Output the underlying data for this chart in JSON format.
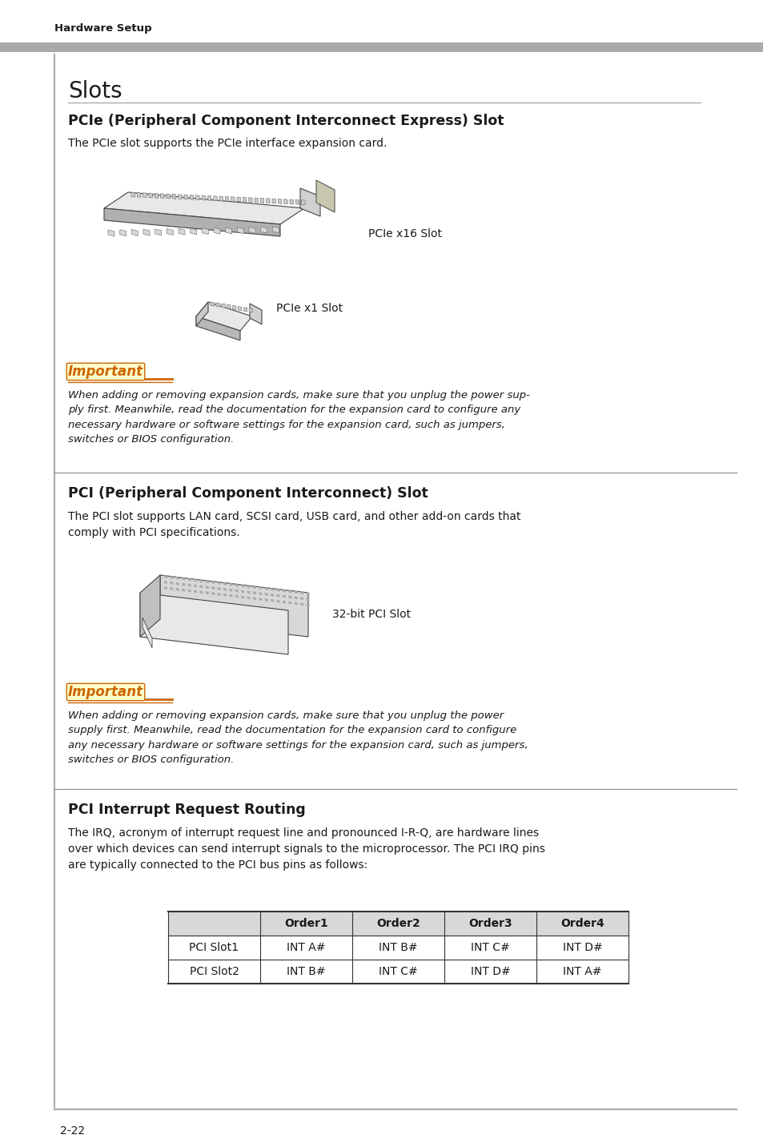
{
  "page_bg": "#ffffff",
  "header_bar_color": "#aaaaaa",
  "header_text": "Hardware Setup",
  "header_text_color": "#1a1a1a",
  "footer_text": "2-22",
  "title_slots": "Slots",
  "section1_title": "PCIe (Peripheral Component Interconnect Express) Slot",
  "section1_body": "The PCIe slot supports the PCIe interface expansion card.",
  "pcie_x16_label": "PCIe x16 Slot",
  "pcie_x1_label": "PCIe x1 Slot",
  "important_label": "Important",
  "important_text1": "When adding or removing expansion cards, make sure that you unplug the power sup-\nply first. Meanwhile, read the documentation for the expansion card to configure any\nnecessary hardware or software settings for the expansion card, such as jumpers,\nswitches or BIOS configuration.",
  "section2_title": "PCI (Peripheral Component Interconnect) Slot",
  "section2_body": "The PCI slot supports LAN card, SCSI card, USB card, and other add-on cards that\ncomply with PCI specifications.",
  "pci_32bit_label": "32-bit PCI Slot",
  "important_text2": "When adding or removing expansion cards, make sure that you unplug the power\nsupply first. Meanwhile, read the documentation for the expansion card to configure\nany necessary hardware or software settings for the expansion card, such as jumpers,\nswitches or BIOS configuration.",
  "section3_title": "PCI Interrupt Request Routing",
  "section3_body": "The IRQ, acronym of interrupt request line and pronounced I-R-Q, are hardware lines\nover which devices can send interrupt signals to the microprocessor. The PCI IRQ pins\nare typically connected to the PCI bus pins as follows:",
  "table_header": [
    "",
    "Order1",
    "Order2",
    "Order3",
    "Order4"
  ],
  "table_row1": [
    "PCI Slot1",
    "INT A#",
    "INT B#",
    "INT C#",
    "INT D#"
  ],
  "table_row2": [
    "PCI Slot2",
    "INT B#",
    "INT C#",
    "INT D#",
    "INT A#"
  ],
  "main_color": "#1a1a1a",
  "important_color": "#cc6600",
  "border_color": "#888888",
  "table_header_bg": "#d8d8d8",
  "divider_color": "#888888",
  "slot_face": "#f0f0f0",
  "slot_edge": "#333333",
  "slot_dark": "#888888",
  "slot_mid": "#cccccc"
}
